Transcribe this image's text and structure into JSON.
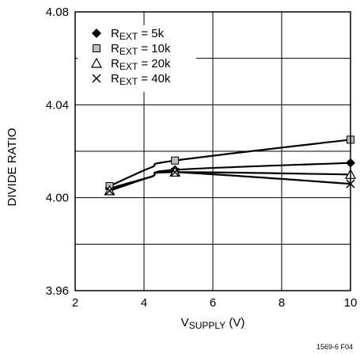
{
  "chart_data": {
    "type": "line",
    "xlabel": {
      "main": "V",
      "sub": "SUPPLY",
      "suffix": " (V)"
    },
    "ylabel": "DIVIDE RATIO",
    "xlim": [
      2,
      10
    ],
    "ylim": [
      3.96,
      4.08
    ],
    "xticks": [
      2,
      4,
      6,
      8,
      10
    ],
    "yticks": [
      3.96,
      4.0,
      4.04,
      4.08
    ],
    "xtick_labels": [
      "2",
      "4",
      "6",
      "8",
      "10"
    ],
    "ytick_labels": [
      "3.96",
      "4.00",
      "4.04",
      "4.08"
    ],
    "grid": true,
    "legend_position": "top-left",
    "series": [
      {
        "name": "R",
        "sub": "EXT",
        "suffix": " = 5k",
        "marker": "diamond",
        "x": [
          3,
          4.2,
          4.9,
          10
        ],
        "y": [
          4.004,
          4.009,
          4.012,
          4.015
        ]
      },
      {
        "name": "R",
        "sub": "EXT",
        "suffix": " = 10k",
        "marker": "square",
        "x": [
          3,
          4.2,
          4.9,
          10
        ],
        "y": [
          4.005,
          4.013,
          4.016,
          4.025
        ]
      },
      {
        "name": "R",
        "sub": "EXT",
        "suffix": " = 20k",
        "marker": "triangle",
        "x": [
          3,
          4.2,
          4.9,
          10
        ],
        "y": [
          4.003,
          4.009,
          4.011,
          4.01
        ]
      },
      {
        "name": "R",
        "sub": "EXT",
        "suffix": " = 40k",
        "marker": "x",
        "x": [
          3,
          4.2,
          4.9,
          10
        ],
        "y": [
          4.003,
          4.009,
          4.011,
          4.006
        ]
      }
    ],
    "figure_code": "1569-6 F04"
  }
}
